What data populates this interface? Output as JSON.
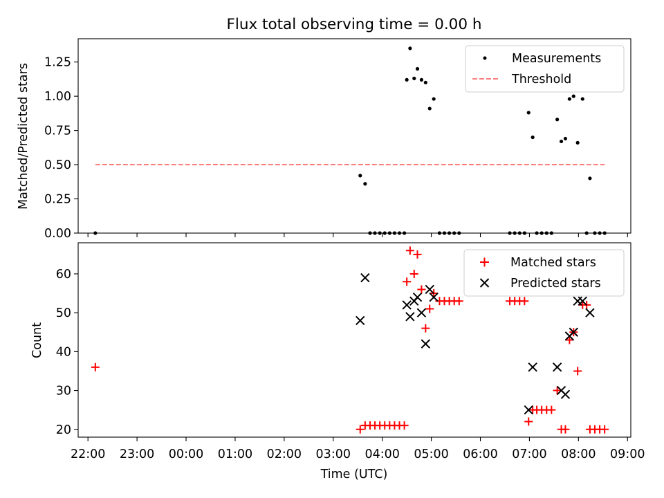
{
  "figure": {
    "title": "Flux total observing time = 0.00 h"
  },
  "chart_data": [
    {
      "type": "scatter",
      "title": "Flux total observing time = 0.00 h",
      "xlabel": "",
      "ylabel": "Matched/Predicted stars",
      "xlim": [
        "21:48",
        "09:04"
      ],
      "ylim": [
        0.0,
        1.42
      ],
      "yticks": [
        "0.00",
        "0.25",
        "0.50",
        "0.75",
        "1.00",
        "1.25"
      ],
      "grid": false,
      "legend": {
        "location": "upper right",
        "entries": [
          "Measurements",
          "Threshold"
        ]
      },
      "series": [
        {
          "name": "Measurements",
          "color": "#000000",
          "marker": "dot",
          "points": [
            [
              "22:09",
              0.0
            ],
            [
              "03:33",
              0.42
            ],
            [
              "03:39",
              0.36
            ],
            [
              "03:45",
              0.0
            ],
            [
              "03:51",
              0.0
            ],
            [
              "03:57",
              0.0
            ],
            [
              "04:03",
              0.0
            ],
            [
              "04:09",
              0.0
            ],
            [
              "04:15",
              0.0
            ],
            [
              "04:21",
              0.0
            ],
            [
              "04:27",
              0.0
            ],
            [
              "04:30",
              1.12
            ],
            [
              "04:34",
              1.35
            ],
            [
              "04:39",
              1.13
            ],
            [
              "04:43",
              1.2
            ],
            [
              "04:48",
              1.12
            ],
            [
              "04:53",
              1.1
            ],
            [
              "04:58",
              0.91
            ],
            [
              "05:03",
              0.98
            ],
            [
              "05:10",
              0.0
            ],
            [
              "05:16",
              0.0
            ],
            [
              "05:22",
              0.0
            ],
            [
              "05:28",
              0.0
            ],
            [
              "05:34",
              0.0
            ],
            [
              "06:36",
              0.0
            ],
            [
              "06:42",
              0.0
            ],
            [
              "06:48",
              0.0
            ],
            [
              "06:54",
              0.0
            ],
            [
              "06:59",
              0.88
            ],
            [
              "07:04",
              0.7
            ],
            [
              "07:09",
              0.0
            ],
            [
              "07:15",
              0.0
            ],
            [
              "07:21",
              0.0
            ],
            [
              "07:27",
              0.0
            ],
            [
              "07:34",
              0.83
            ],
            [
              "07:39",
              0.67
            ],
            [
              "07:44",
              0.69
            ],
            [
              "07:49",
              0.98
            ],
            [
              "07:54",
              1.0
            ],
            [
              "07:59",
              0.66
            ],
            [
              "08:05",
              0.98
            ],
            [
              "08:10",
              0.0
            ],
            [
              "08:14",
              0.4
            ],
            [
              "08:20",
              0.0
            ],
            [
              "08:26",
              0.0
            ],
            [
              "08:32",
              0.0
            ]
          ]
        },
        {
          "name": "Threshold",
          "color": "#ff7f7f",
          "style": "dashed",
          "x_range": [
            "22:09",
            "08:32"
          ],
          "value": 0.5
        }
      ]
    },
    {
      "type": "scatter",
      "xlabel": "Time (UTC)",
      "ylabel": "Count",
      "xlim": [
        "21:48",
        "09:04"
      ],
      "ylim": [
        18,
        68
      ],
      "yticks": [
        "20",
        "30",
        "40",
        "50",
        "60"
      ],
      "xticks": [
        "22:00",
        "23:00",
        "00:00",
        "01:00",
        "02:00",
        "03:00",
        "04:00",
        "05:00",
        "06:00",
        "07:00",
        "08:00",
        "09:00"
      ],
      "grid": false,
      "legend": {
        "location": "upper right",
        "entries": [
          "Matched stars",
          "Predicted stars"
        ]
      },
      "series": [
        {
          "name": "Matched stars",
          "color": "#ff0000",
          "marker": "plus",
          "points": [
            [
              "22:09",
              36
            ],
            [
              "03:33",
              20
            ],
            [
              "03:39",
              21
            ],
            [
              "03:45",
              21
            ],
            [
              "03:51",
              21
            ],
            [
              "03:57",
              21
            ],
            [
              "04:03",
              21
            ],
            [
              "04:09",
              21
            ],
            [
              "04:15",
              21
            ],
            [
              "04:21",
              21
            ],
            [
              "04:27",
              21
            ],
            [
              "04:30",
              58
            ],
            [
              "04:34",
              66
            ],
            [
              "04:39",
              60
            ],
            [
              "04:43",
              65
            ],
            [
              "04:48",
              56
            ],
            [
              "04:53",
              46
            ],
            [
              "04:58",
              51
            ],
            [
              "05:03",
              55
            ],
            [
              "05:10",
              53
            ],
            [
              "05:16",
              53
            ],
            [
              "05:22",
              53
            ],
            [
              "05:28",
              53
            ],
            [
              "05:34",
              53
            ],
            [
              "06:36",
              53
            ],
            [
              "06:42",
              53
            ],
            [
              "06:48",
              53
            ],
            [
              "06:54",
              53
            ],
            [
              "06:59",
              22
            ],
            [
              "07:04",
              25
            ],
            [
              "07:09",
              25
            ],
            [
              "07:15",
              25
            ],
            [
              "07:21",
              25
            ],
            [
              "07:27",
              25
            ],
            [
              "07:34",
              30
            ],
            [
              "07:39",
              20
            ],
            [
              "07:44",
              20
            ],
            [
              "07:49",
              43
            ],
            [
              "07:54",
              45
            ],
            [
              "07:59",
              35
            ],
            [
              "08:05",
              52
            ],
            [
              "08:10",
              52
            ],
            [
              "08:14",
              20
            ],
            [
              "08:20",
              20
            ],
            [
              "08:26",
              20
            ],
            [
              "08:32",
              20
            ]
          ]
        },
        {
          "name": "Predicted stars",
          "color": "#000000",
          "marker": "x",
          "points": [
            [
              "03:33",
              48
            ],
            [
              "03:39",
              59
            ],
            [
              "04:30",
              52
            ],
            [
              "04:34",
              49
            ],
            [
              "04:39",
              53
            ],
            [
              "04:43",
              54
            ],
            [
              "04:48",
              50
            ],
            [
              "04:53",
              42
            ],
            [
              "04:58",
              56
            ],
            [
              "05:03",
              54
            ],
            [
              "06:59",
              25
            ],
            [
              "07:04",
              36
            ],
            [
              "07:34",
              36
            ],
            [
              "07:39",
              30
            ],
            [
              "07:44",
              29
            ],
            [
              "07:49",
              44
            ],
            [
              "07:54",
              45
            ],
            [
              "07:59",
              53
            ],
            [
              "08:05",
              53
            ],
            [
              "08:14",
              50
            ]
          ]
        }
      ]
    }
  ]
}
